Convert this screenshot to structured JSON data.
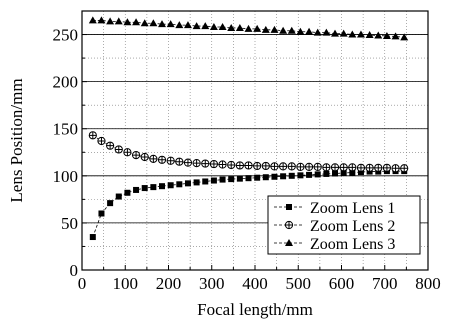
{
  "chart_data": {
    "type": "line",
    "title": "",
    "xlabel": "Focal length/mm",
    "ylabel": "Lens Position/mm",
    "xlim": [
      0,
      800
    ],
    "ylim": [
      0,
      275
    ],
    "xticks": [
      0,
      100,
      200,
      300,
      400,
      500,
      600,
      700,
      800
    ],
    "yticks": [
      0,
      50,
      100,
      150,
      200,
      250
    ],
    "grid": {
      "major_solid_y": [
        50,
        100,
        150,
        200,
        250
      ],
      "minor_dotted": true
    },
    "legend_position": "bottom-right",
    "x": [
      25,
      45,
      65,
      85,
      105,
      125,
      145,
      165,
      185,
      205,
      225,
      245,
      265,
      285,
      305,
      325,
      345,
      365,
      385,
      405,
      425,
      445,
      465,
      485,
      505,
      525,
      545,
      565,
      585,
      605,
      625,
      645,
      665,
      685,
      705,
      725,
      745
    ],
    "series": [
      {
        "name": "Zoom Lens 1",
        "marker": "square",
        "values": [
          35,
          60,
          71,
          78,
          82,
          85,
          87,
          88,
          89,
          90,
          91,
          92,
          93,
          94,
          95,
          96,
          96.5,
          97,
          97.5,
          98,
          98.5,
          99,
          99.5,
          100,
          100.5,
          101,
          101.5,
          102,
          102.5,
          103,
          103.5,
          104,
          104.5,
          104.5,
          105,
          105,
          105
        ]
      },
      {
        "name": "Zoom Lens 2",
        "marker": "crossed-circle",
        "values": [
          143,
          137,
          132,
          128,
          125,
          122,
          120,
          118,
          117,
          116,
          115,
          114,
          113.5,
          113,
          112.5,
          112,
          111.5,
          111,
          111,
          110.5,
          110.5,
          110,
          110,
          110,
          109.5,
          109.5,
          109.5,
          109,
          109,
          109,
          109,
          108.5,
          108.5,
          108.5,
          108.5,
          108,
          108
        ]
      },
      {
        "name": "Zoom Lens 3",
        "marker": "triangle",
        "values": [
          265,
          265,
          264,
          264,
          263,
          263,
          262,
          262,
          261,
          261,
          260,
          260,
          259,
          259,
          258,
          258,
          257,
          257,
          256,
          256,
          255,
          255,
          254,
          254,
          253,
          253,
          252,
          252,
          251,
          251,
          250,
          250,
          249.5,
          249,
          248.5,
          248,
          247
        ]
      }
    ]
  }
}
